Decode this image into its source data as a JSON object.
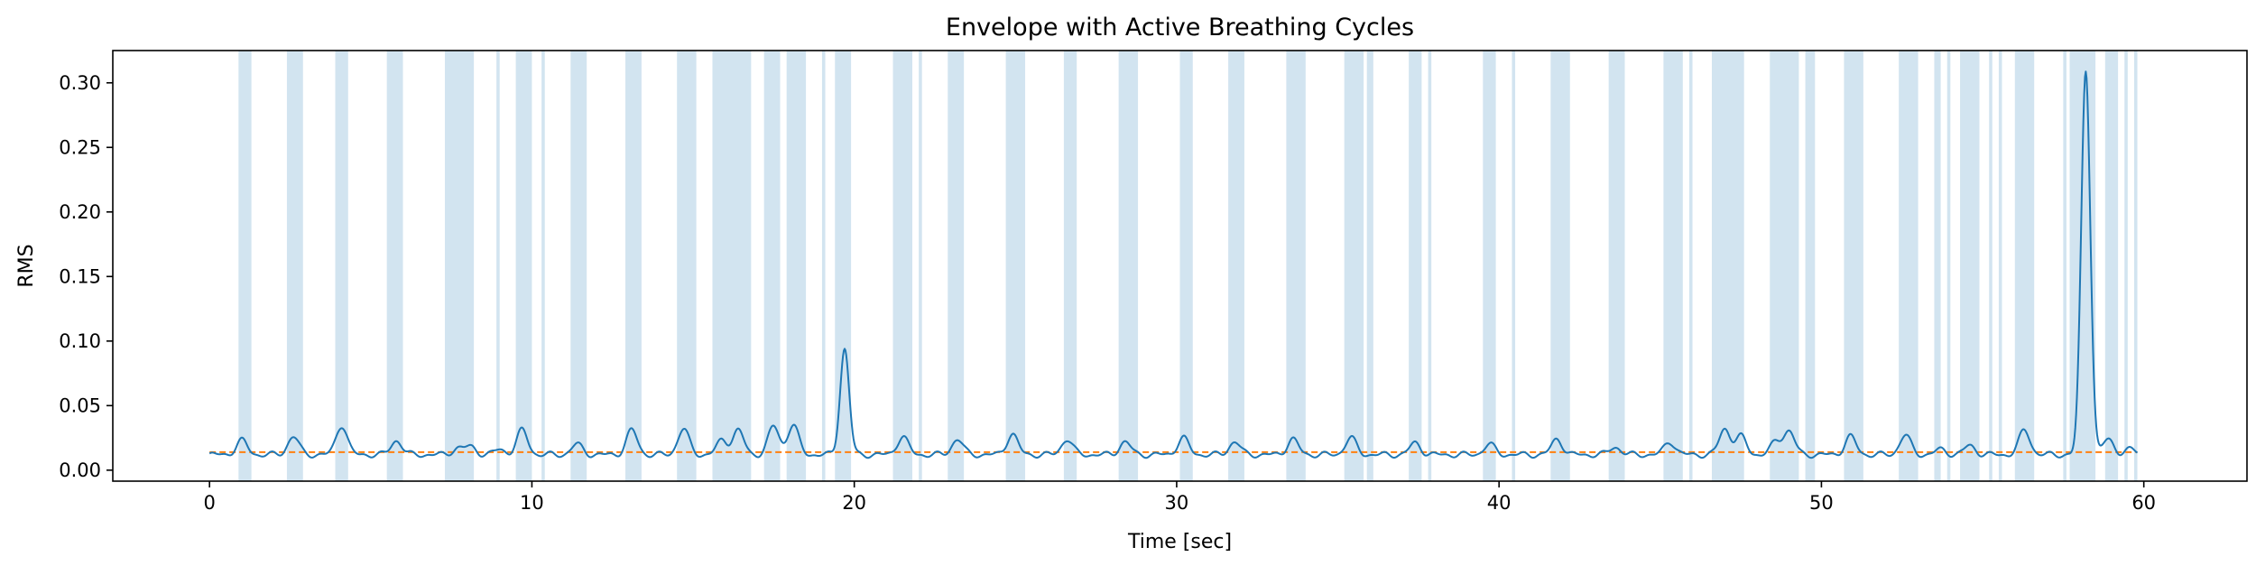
{
  "chart_data": {
    "type": "line",
    "title": "Envelope with Active Breathing Cycles",
    "xlabel": "Time [sec]",
    "ylabel": "RMS",
    "xlim": [
      -3,
      63.2
    ],
    "ylim": [
      -0.0085,
      0.325
    ],
    "xticks": [
      0,
      10,
      20,
      30,
      40,
      50,
      60
    ],
    "yticks": [
      0.0,
      0.05,
      0.1,
      0.15,
      0.2,
      0.25,
      0.3
    ],
    "ytick_labels": [
      "0.00",
      "0.05",
      "0.10",
      "0.15",
      "0.20",
      "0.25",
      "0.30"
    ],
    "grid": false,
    "colors": {
      "envelope": "#1f77b4",
      "threshold": "#ff7f0e",
      "active": "#1f77b4"
    },
    "threshold": 0.014,
    "active_cycles": [
      [
        0.9,
        1.3
      ],
      [
        2.4,
        2.9
      ],
      [
        3.9,
        4.3
      ],
      [
        5.5,
        6.0
      ],
      [
        7.3,
        8.2
      ],
      [
        8.9,
        9.0
      ],
      [
        9.5,
        10.0
      ],
      [
        10.3,
        10.4
      ],
      [
        11.2,
        11.7
      ],
      [
        12.9,
        13.4
      ],
      [
        14.5,
        15.1
      ],
      [
        15.6,
        16.8
      ],
      [
        17.2,
        17.7
      ],
      [
        17.9,
        18.5
      ],
      [
        19.0,
        19.1
      ],
      [
        19.4,
        19.9
      ],
      [
        21.2,
        21.8
      ],
      [
        22.0,
        22.1
      ],
      [
        22.9,
        23.4
      ],
      [
        24.7,
        25.3
      ],
      [
        26.5,
        26.9
      ],
      [
        28.2,
        28.8
      ],
      [
        30.1,
        30.5
      ],
      [
        31.6,
        32.1
      ],
      [
        33.4,
        34.0
      ],
      [
        35.2,
        35.8
      ],
      [
        35.9,
        36.1
      ],
      [
        37.2,
        37.6
      ],
      [
        37.8,
        37.9
      ],
      [
        39.5,
        39.9
      ],
      [
        40.4,
        40.5
      ],
      [
        41.6,
        42.2
      ],
      [
        43.4,
        43.9
      ],
      [
        45.1,
        45.7
      ],
      [
        45.9,
        46.0
      ],
      [
        46.6,
        47.6
      ],
      [
        48.4,
        49.3
      ],
      [
        49.5,
        49.8
      ],
      [
        50.7,
        51.3
      ],
      [
        52.4,
        53.0
      ],
      [
        53.5,
        53.7
      ],
      [
        53.9,
        54.0
      ],
      [
        54.3,
        54.9
      ],
      [
        55.2,
        55.3
      ],
      [
        55.5,
        55.6
      ],
      [
        56.0,
        56.6
      ],
      [
        57.5,
        57.6
      ],
      [
        57.7,
        58.5
      ],
      [
        58.8,
        59.2
      ],
      [
        59.4,
        59.5
      ],
      [
        59.7,
        59.8
      ]
    ],
    "envelope": {
      "baseline": 0.012,
      "peaks": [
        [
          1.0,
          0.023
        ],
        [
          2.6,
          0.026
        ],
        [
          4.1,
          0.035
        ],
        [
          5.8,
          0.023
        ],
        [
          7.7,
          0.017
        ],
        [
          8.1,
          0.018
        ],
        [
          9.0,
          0.016
        ],
        [
          9.7,
          0.031
        ],
        [
          11.4,
          0.02
        ],
        [
          13.1,
          0.031
        ],
        [
          14.7,
          0.032
        ],
        [
          15.9,
          0.023
        ],
        [
          16.4,
          0.031
        ],
        [
          17.5,
          0.034
        ],
        [
          18.1,
          0.035
        ],
        [
          19.7,
          0.094
        ],
        [
          21.5,
          0.026
        ],
        [
          23.2,
          0.024
        ],
        [
          24.9,
          0.028
        ],
        [
          26.6,
          0.024
        ],
        [
          28.4,
          0.022
        ],
        [
          30.2,
          0.025
        ],
        [
          31.8,
          0.022
        ],
        [
          33.6,
          0.024
        ],
        [
          35.4,
          0.025
        ],
        [
          37.4,
          0.021
        ],
        [
          39.7,
          0.02
        ],
        [
          41.8,
          0.024
        ],
        [
          43.6,
          0.018
        ],
        [
          45.3,
          0.022
        ],
        [
          47.0,
          0.032
        ],
        [
          47.5,
          0.026
        ],
        [
          48.6,
          0.022
        ],
        [
          49.0,
          0.03
        ],
        [
          50.9,
          0.026
        ],
        [
          52.6,
          0.027
        ],
        [
          53.7,
          0.016
        ],
        [
          54.6,
          0.019
        ],
        [
          56.3,
          0.031
        ],
        [
          58.2,
          0.31
        ],
        [
          58.9,
          0.024
        ],
        [
          59.6,
          0.016
        ]
      ]
    }
  }
}
